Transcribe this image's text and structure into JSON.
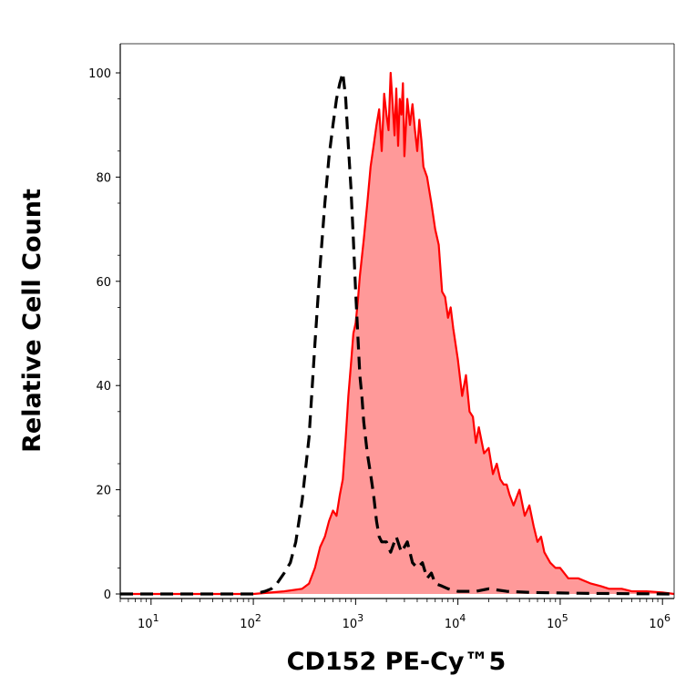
{
  "chart_data": {
    "type": "area",
    "xlabel": "CD152 PE-Cy™5",
    "ylabel": "Relative Cell Count",
    "x_scale": "log",
    "xlim": [
      5,
      1300000
    ],
    "ylim": [
      0,
      100
    ],
    "x_ticks": [
      {
        "value": 10,
        "exp": "1"
      },
      {
        "value": 100,
        "exp": "2"
      },
      {
        "value": 1000,
        "exp": "3"
      },
      {
        "value": 10000,
        "exp": "4"
      },
      {
        "value": 100000,
        "exp": "5"
      },
      {
        "value": 1000000,
        "exp": "6"
      }
    ],
    "y_ticks": [
      0,
      20,
      40,
      60,
      80,
      100
    ],
    "grid": false,
    "series": [
      {
        "style": "filled red",
        "color": "#ff0000",
        "fill": "#ff9999",
        "x": [
          5,
          100,
          200,
          300,
          350,
          400,
          450,
          500,
          550,
          600,
          650,
          700,
          750,
          800,
          850,
          900,
          950,
          1000,
          1050,
          1100,
          1200,
          1300,
          1400,
          1500,
          1600,
          1700,
          1800,
          1900,
          2000,
          2100,
          2200,
          2300,
          2400,
          2500,
          2600,
          2700,
          2800,
          2900,
          3000,
          3200,
          3400,
          3600,
          3800,
          4000,
          4200,
          4400,
          4600,
          5000,
          5500,
          6000,
          6500,
          7000,
          7500,
          8000,
          8500,
          9000,
          10000,
          11000,
          12000,
          13000,
          14000,
          15000,
          16000,
          18000,
          20000,
          22000,
          24000,
          26000,
          28000,
          30000,
          32000,
          35000,
          40000,
          45000,
          50000,
          55000,
          60000,
          65000,
          70000,
          80000,
          90000,
          100000,
          120000,
          150000,
          200000,
          250000,
          300000,
          400000,
          500000,
          700000,
          1000000,
          1300000
        ],
        "y": [
          0,
          0,
          0.5,
          1,
          2,
          5,
          9,
          11,
          14,
          16,
          15,
          19,
          22,
          30,
          38,
          44,
          50,
          52,
          56,
          61,
          68,
          75,
          82,
          86,
          90,
          93,
          85,
          96,
          92,
          89,
          100,
          94,
          88,
          97,
          86,
          95,
          92,
          98,
          84,
          95,
          90,
          94,
          89,
          85,
          91,
          87,
          82,
          80,
          75,
          70,
          67,
          58,
          57,
          53,
          55,
          51,
          45,
          38,
          42,
          35,
          34,
          29,
          32,
          27,
          28,
          23,
          25,
          22,
          21,
          21,
          19,
          17,
          20,
          15,
          17,
          13,
          10,
          11,
          8,
          6,
          5,
          5,
          3,
          3,
          2,
          1.5,
          1,
          1,
          0.5,
          0.5,
          0.3,
          0
        ]
      },
      {
        "style": "dashed black",
        "color": "#000000",
        "x": [
          5,
          100,
          130,
          150,
          170,
          200,
          230,
          260,
          300,
          350,
          400,
          450,
          500,
          550,
          600,
          650,
          700,
          750,
          800,
          850,
          900,
          950,
          1000,
          1050,
          1100,
          1150,
          1200,
          1300,
          1400,
          1500,
          1600,
          1700,
          1800,
          2000,
          2200,
          2500,
          2800,
          3200,
          3600,
          4000,
          4500,
          5000,
          5500,
          6000,
          7000,
          8000,
          10000,
          15000,
          20000,
          30000,
          50000,
          100000,
          200000,
          1300000
        ],
        "y": [
          0,
          0,
          0.5,
          1,
          2,
          4,
          6,
          10,
          18,
          30,
          48,
          63,
          75,
          84,
          90,
          95,
          98,
          100,
          95,
          86,
          78,
          68,
          58,
          50,
          42,
          38,
          33,
          27,
          23,
          19,
          14,
          11,
          10,
          10,
          8,
          11,
          8,
          10,
          6,
          5,
          6,
          3,
          4,
          2,
          1.5,
          1,
          0.5,
          0.5,
          1,
          0.5,
          0.3,
          0.2,
          0.1,
          0
        ]
      }
    ]
  }
}
